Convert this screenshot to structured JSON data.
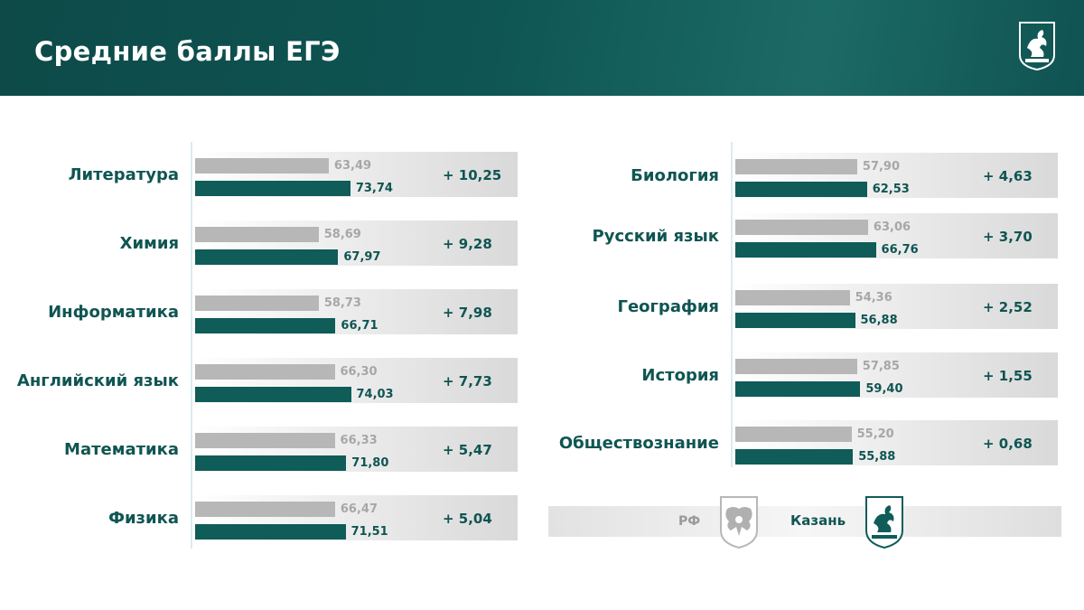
{
  "header": {
    "title": "Средние баллы ЕГЭ",
    "emblem_icon": "kazan-coat-of-arms-icon"
  },
  "legend": {
    "rf_label": "РФ",
    "rf_icon": "russia-coat-of-arms-icon",
    "kazan_label": "Казань",
    "kazan_icon": "kazan-coat-of-arms-icon"
  },
  "colors": {
    "rf_bar": "#b7b7b7",
    "kazan_bar": "#0f5c59",
    "header_bg": "#0e5553",
    "accent_text": "#0f5552"
  },
  "chart_data": {
    "type": "bar",
    "orientation": "horizontal",
    "title": "Средние баллы ЕГЭ",
    "series_names": [
      "РФ",
      "Казань"
    ],
    "legend_position": "bottom-right",
    "grid": false,
    "items": [
      {
        "subject": "Литература",
        "rf": 63.49,
        "kazan": 73.74,
        "rf_label": "63,49",
        "kazan_label": "73,74",
        "diff_label": "+ 10,25"
      },
      {
        "subject": "Химия",
        "rf": 58.69,
        "kazan": 67.97,
        "rf_label": "58,69",
        "kazan_label": "67,97",
        "diff_label": "+ 9,28"
      },
      {
        "subject": "Информатика",
        "rf": 58.73,
        "kazan": 66.71,
        "rf_label": "58,73",
        "kazan_label": "66,71",
        "diff_label": "+ 7,98"
      },
      {
        "subject": "Английский язык",
        "rf": 66.3,
        "kazan": 74.03,
        "rf_label": "66,30",
        "kazan_label": "74,03",
        "diff_label": "+ 7,73"
      },
      {
        "subject": "Математика",
        "rf": 66.33,
        "kazan": 71.8,
        "rf_label": "66,33",
        "kazan_label": "71,80",
        "diff_label": "+ 5,47"
      },
      {
        "subject": "Физика",
        "rf": 66.47,
        "kazan": 71.51,
        "rf_label": "66,47",
        "kazan_label": "71,51",
        "diff_label": "+ 5,04"
      },
      {
        "subject": "Биология",
        "rf": 57.9,
        "kazan": 62.53,
        "rf_label": "57,90",
        "kazan_label": "62,53",
        "diff_label": "+ 4,63"
      },
      {
        "subject": "Русский язык",
        "rf": 63.06,
        "kazan": 66.76,
        "rf_label": "63,06",
        "kazan_label": "66,76",
        "diff_label": "+ 3,70"
      },
      {
        "subject": "География",
        "rf": 54.36,
        "kazan": 56.88,
        "rf_label": "54,36",
        "kazan_label": "56,88",
        "diff_label": "+ 2,52"
      },
      {
        "subject": "История",
        "rf": 57.85,
        "kazan": 59.4,
        "rf_label": "57,85",
        "kazan_label": "59,40",
        "diff_label": "+ 1,55"
      },
      {
        "subject": "Обществознание",
        "rf": 55.2,
        "kazan": 55.88,
        "rf_label": "55,20",
        "kazan_label": "55,88",
        "diff_label": "+ 0,68"
      }
    ]
  }
}
